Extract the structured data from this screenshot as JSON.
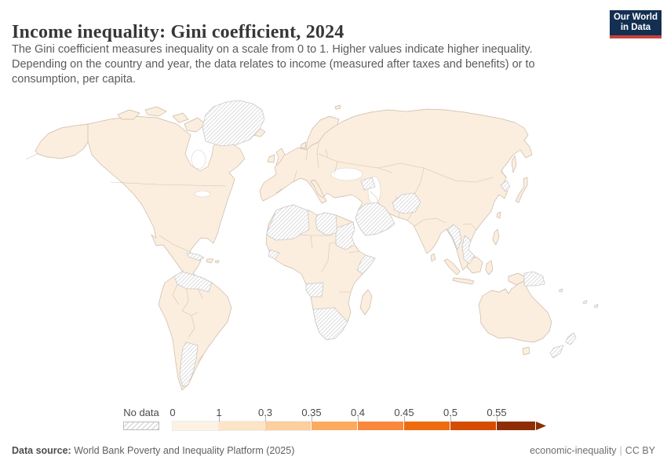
{
  "header": {
    "title": "Income inequality: Gini coefficient, 2024",
    "subtitle_lines": [
      "The Gini coefficient measures inequality on a scale from 0 to 1. Higher values indicate higher inequality.",
      "Depending on the country and year, the data relates to income (measured after taxes and benefits) or to",
      "consumption, per capita."
    ]
  },
  "logo": {
    "line1": "Our World",
    "line2": "in Data"
  },
  "legend": {
    "no_data_label": "No data",
    "bins": [
      {
        "label": "0",
        "color": "#fdf2e3"
      },
      {
        "label": "1",
        "color": "#fce4c4"
      },
      {
        "label": "0.3",
        "color": "#fccf9d"
      },
      {
        "label": "0.35",
        "color": "#fcaa60"
      },
      {
        "label": "0.4",
        "color": "#f9883c"
      },
      {
        "label": "0.45",
        "color": "#ee6b10"
      },
      {
        "label": "0.5",
        "color": "#d44d03"
      },
      {
        "label": "0.55",
        "color": "#8e2e06"
      }
    ]
  },
  "footer": {
    "source_label": "Data source:",
    "source_text": " World Bank Poverty and Inequality Platform (2025)",
    "attribution_left": "economic-inequality",
    "attribution_divider": "|",
    "attribution_right": "CC BY"
  },
  "colors": {
    "title": "#373737",
    "subtitle": "#5b5b5b",
    "footer": "#5f5f5f",
    "logo-bg": "#132f51",
    "logo-accent": "#c8413c",
    "land": "#fbeede",
    "land-border": "#cbb9a7",
    "nodata-border": "#c9c9c9",
    "hatch-line": "#d8d8d8",
    "sea": "#ffffff"
  }
}
